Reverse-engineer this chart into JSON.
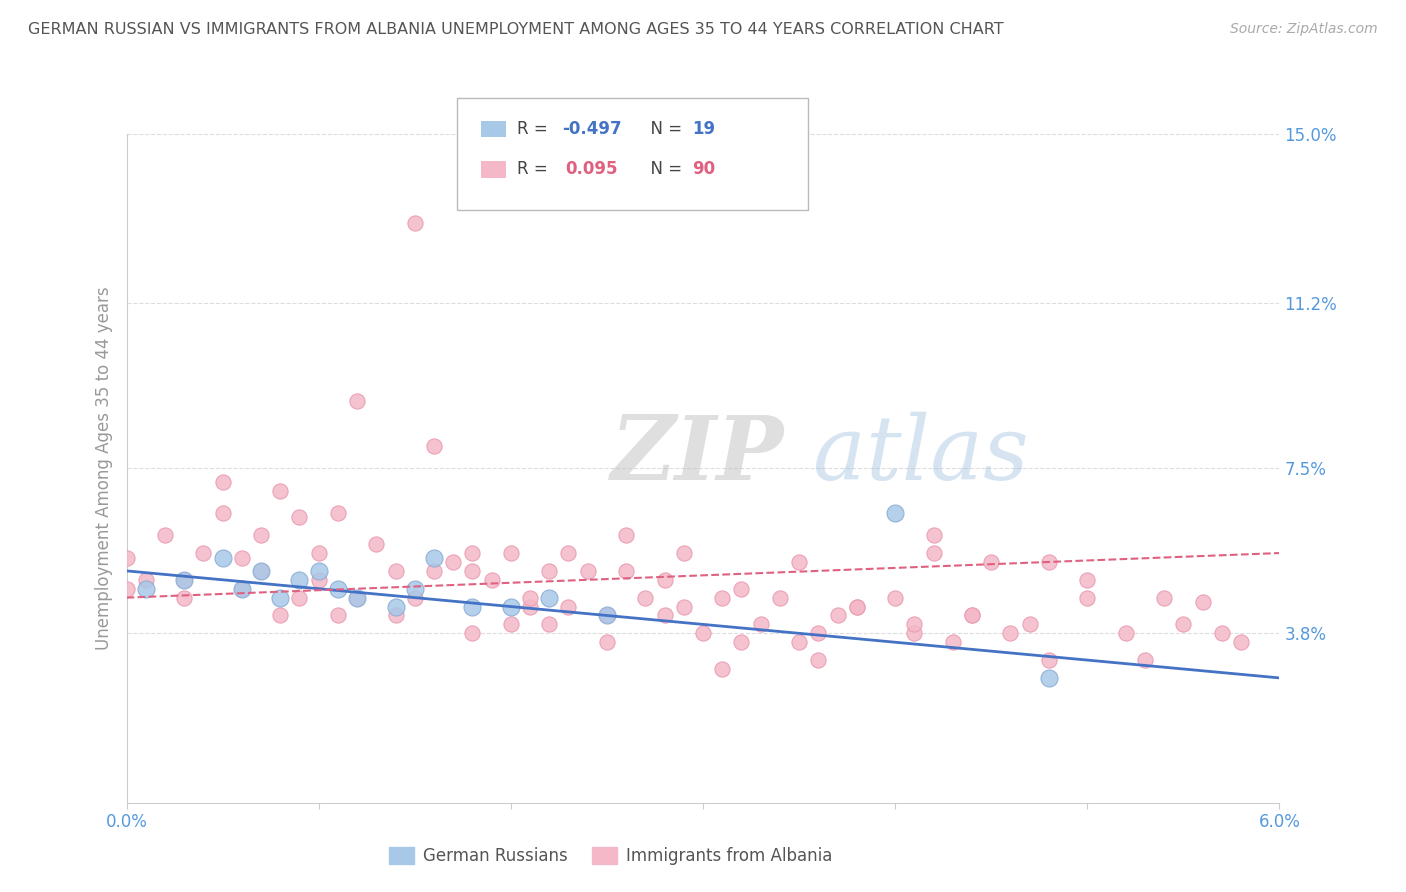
{
  "title": "GERMAN RUSSIAN VS IMMIGRANTS FROM ALBANIA UNEMPLOYMENT AMONG AGES 35 TO 44 YEARS CORRELATION CHART",
  "source": "Source: ZipAtlas.com",
  "ylabel": "Unemployment Among Ages 35 to 44 years",
  "xlim": [
    0.0,
    0.06
  ],
  "ylim": [
    0.0,
    0.15
  ],
  "yticks": [
    0.038,
    0.075,
    0.112,
    0.15
  ],
  "ytick_labels": [
    "3.8%",
    "7.5%",
    "11.2%",
    "15.0%"
  ],
  "xticks": [
    0.0,
    0.01,
    0.02,
    0.03,
    0.04,
    0.05,
    0.06
  ],
  "xtick_labels": [
    "0.0%",
    "",
    "",
    "",
    "",
    "",
    "6.0%"
  ],
  "color_blue": "#a8c8e8",
  "color_pink": "#f4b8c8",
  "color_blue_line": "#4472c4",
  "color_pink_line": "#e06080",
  "color_title": "#555555",
  "color_axis_label": "#999999",
  "color_ytick": "#5599dd",
  "color_xtick_ends": "#5599dd",
  "watermark_zip": "ZIP",
  "watermark_atlas": "atlas",
  "blue_scatter_x": [
    0.001,
    0.003,
    0.005,
    0.006,
    0.007,
    0.008,
    0.009,
    0.01,
    0.011,
    0.012,
    0.014,
    0.015,
    0.016,
    0.018,
    0.02,
    0.022,
    0.025,
    0.04,
    0.048
  ],
  "blue_scatter_y": [
    0.048,
    0.05,
    0.055,
    0.048,
    0.052,
    0.046,
    0.05,
    0.052,
    0.048,
    0.046,
    0.044,
    0.048,
    0.055,
    0.044,
    0.044,
    0.046,
    0.042,
    0.065,
    0.028
  ],
  "pink_scatter_x": [
    0.0,
    0.0,
    0.001,
    0.002,
    0.003,
    0.003,
    0.004,
    0.005,
    0.005,
    0.006,
    0.006,
    0.007,
    0.007,
    0.008,
    0.008,
    0.009,
    0.009,
    0.01,
    0.01,
    0.011,
    0.011,
    0.012,
    0.012,
    0.013,
    0.014,
    0.015,
    0.015,
    0.016,
    0.016,
    0.017,
    0.018,
    0.018,
    0.019,
    0.02,
    0.02,
    0.021,
    0.022,
    0.022,
    0.023,
    0.024,
    0.025,
    0.025,
    0.026,
    0.027,
    0.028,
    0.028,
    0.029,
    0.03,
    0.031,
    0.032,
    0.033,
    0.034,
    0.035,
    0.035,
    0.036,
    0.037,
    0.038,
    0.04,
    0.041,
    0.042,
    0.043,
    0.044,
    0.045,
    0.046,
    0.047,
    0.048,
    0.05,
    0.052,
    0.054,
    0.055,
    0.056,
    0.057,
    0.058,
    0.032,
    0.026,
    0.038,
    0.044,
    0.05,
    0.029,
    0.041,
    0.036,
    0.023,
    0.048,
    0.053,
    0.031,
    0.018,
    0.042,
    0.014,
    0.021
  ],
  "pink_scatter_y": [
    0.048,
    0.055,
    0.05,
    0.06,
    0.05,
    0.046,
    0.056,
    0.065,
    0.072,
    0.055,
    0.048,
    0.052,
    0.06,
    0.07,
    0.042,
    0.064,
    0.046,
    0.05,
    0.056,
    0.065,
    0.042,
    0.09,
    0.046,
    0.058,
    0.052,
    0.13,
    0.046,
    0.08,
    0.052,
    0.054,
    0.056,
    0.038,
    0.05,
    0.056,
    0.04,
    0.044,
    0.052,
    0.04,
    0.056,
    0.052,
    0.036,
    0.042,
    0.06,
    0.046,
    0.042,
    0.05,
    0.044,
    0.038,
    0.046,
    0.036,
    0.04,
    0.046,
    0.036,
    0.054,
    0.038,
    0.042,
    0.044,
    0.046,
    0.038,
    0.06,
    0.036,
    0.042,
    0.054,
    0.038,
    0.04,
    0.032,
    0.05,
    0.038,
    0.046,
    0.04,
    0.045,
    0.038,
    0.036,
    0.048,
    0.052,
    0.044,
    0.042,
    0.046,
    0.056,
    0.04,
    0.032,
    0.044,
    0.054,
    0.032,
    0.03,
    0.052,
    0.056,
    0.042,
    0.046
  ],
  "blue_line_x": [
    0.0,
    0.06
  ],
  "blue_line_y": [
    0.052,
    0.028
  ],
  "pink_line_x": [
    0.0,
    0.06
  ],
  "pink_line_y": [
    0.046,
    0.056
  ]
}
